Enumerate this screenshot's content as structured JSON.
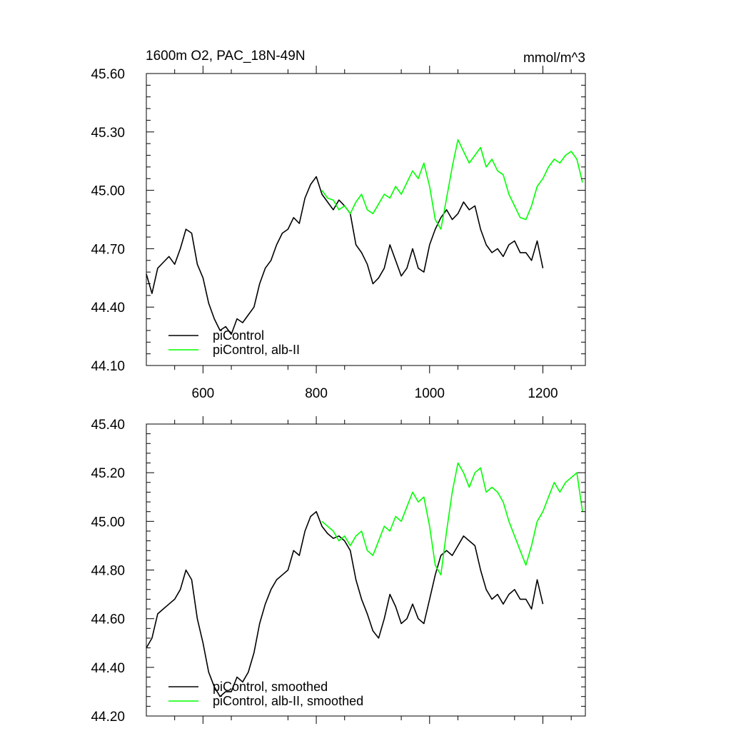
{
  "chart_data": [
    {
      "type": "line",
      "title": "1600m O2, PAC_18N-49N",
      "units": "mmol/m^3",
      "xlim": [
        500,
        1275
      ],
      "ylim": [
        44.1,
        45.6
      ],
      "x_ticks": [
        600,
        800,
        1000,
        1200
      ],
      "x_tick_labels": [
        "600",
        "800",
        "1000",
        "1200"
      ],
      "y_ticks": [
        44.1,
        44.4,
        44.7,
        45.0,
        45.3,
        45.6
      ],
      "y_tick_labels": [
        "44.10",
        "44.40",
        "44.70",
        "45.00",
        "45.30",
        "45.60"
      ],
      "grid": false,
      "legend_position": "bottom-left",
      "series": [
        {
          "name": "piControl",
          "color": "#000000",
          "x": [
            500,
            510,
            520,
            530,
            540,
            550,
            560,
            570,
            580,
            590,
            600,
            610,
            620,
            630,
            640,
            650,
            660,
            670,
            680,
            690,
            700,
            710,
            720,
            730,
            740,
            750,
            760,
            770,
            780,
            790,
            800,
            810,
            820,
            830,
            840,
            850,
            860,
            870,
            880,
            890,
            900,
            910,
            920,
            930,
            940,
            950,
            960,
            970,
            980,
            990,
            1000,
            1010,
            1020,
            1030,
            1040,
            1050,
            1060,
            1070,
            1080,
            1090,
            1100,
            1110,
            1120,
            1130,
            1140,
            1150,
            1160,
            1170,
            1180,
            1190,
            1200
          ],
          "values": [
            44.57,
            44.47,
            44.6,
            44.63,
            44.66,
            44.62,
            44.7,
            44.8,
            44.78,
            44.62,
            44.55,
            44.42,
            44.34,
            44.28,
            44.3,
            44.26,
            44.34,
            44.32,
            44.36,
            44.4,
            44.52,
            44.6,
            44.64,
            44.72,
            44.78,
            44.8,
            44.86,
            44.83,
            44.96,
            45.03,
            45.07,
            44.98,
            44.94,
            44.9,
            44.95,
            44.92,
            44.88,
            44.72,
            44.68,
            44.62,
            44.52,
            44.55,
            44.6,
            44.72,
            44.64,
            44.56,
            44.6,
            44.7,
            44.6,
            44.58,
            44.72,
            44.8,
            44.86,
            44.9,
            44.85,
            44.88,
            44.94,
            44.9,
            44.92,
            44.8,
            44.72,
            44.68,
            44.7,
            44.66,
            44.72,
            44.74,
            44.68,
            44.68,
            44.64,
            44.74,
            44.6
          ]
        },
        {
          "name": "piControl, alb-II",
          "color": "#00ff00",
          "x": [
            810,
            820,
            830,
            840,
            850,
            860,
            870,
            880,
            890,
            900,
            910,
            920,
            930,
            940,
            950,
            960,
            970,
            980,
            990,
            1000,
            1010,
            1020,
            1030,
            1040,
            1050,
            1060,
            1070,
            1080,
            1090,
            1100,
            1110,
            1120,
            1130,
            1140,
            1150,
            1160,
            1170,
            1180,
            1190,
            1200,
            1210,
            1220,
            1230,
            1240,
            1250,
            1260,
            1270
          ],
          "values": [
            45.0,
            44.96,
            44.95,
            44.9,
            44.92,
            44.88,
            44.94,
            44.98,
            44.9,
            44.88,
            44.93,
            44.98,
            44.96,
            45.02,
            44.98,
            45.04,
            45.1,
            45.06,
            45.14,
            45.02,
            44.85,
            44.8,
            44.96,
            45.12,
            45.26,
            45.2,
            45.14,
            45.18,
            45.22,
            45.12,
            45.16,
            45.1,
            45.08,
            44.98,
            44.92,
            44.86,
            44.85,
            44.92,
            45.02,
            45.06,
            45.12,
            45.16,
            45.14,
            45.18,
            45.2,
            45.16,
            45.04
          ]
        }
      ]
    },
    {
      "type": "line",
      "xlim": [
        500,
        1275
      ],
      "ylim": [
        44.2,
        45.4
      ],
      "x_ticks": [
        600,
        800,
        1000,
        1200
      ],
      "y_ticks": [
        44.2,
        44.4,
        44.6,
        44.8,
        45.0,
        45.2,
        45.4
      ],
      "y_tick_labels": [
        "44.20",
        "44.40",
        "44.60",
        "44.80",
        "45.00",
        "45.20",
        "45.40"
      ],
      "grid": false,
      "legend_position": "bottom-left",
      "series": [
        {
          "name": "piControl, smoothed",
          "color": "#000000",
          "x": [
            500,
            510,
            520,
            530,
            540,
            550,
            560,
            570,
            580,
            590,
            600,
            610,
            620,
            630,
            640,
            650,
            660,
            670,
            680,
            690,
            700,
            710,
            720,
            730,
            740,
            750,
            760,
            770,
            780,
            790,
            800,
            810,
            820,
            830,
            840,
            850,
            860,
            870,
            880,
            890,
            900,
            910,
            920,
            930,
            940,
            950,
            960,
            970,
            980,
            990,
            1000,
            1010,
            1020,
            1030,
            1040,
            1050,
            1060,
            1070,
            1080,
            1090,
            1100,
            1110,
            1120,
            1130,
            1140,
            1150,
            1160,
            1170,
            1180,
            1190,
            1200
          ],
          "values": [
            44.48,
            44.52,
            44.62,
            44.64,
            44.66,
            44.68,
            44.72,
            44.8,
            44.76,
            44.6,
            44.5,
            44.38,
            44.32,
            44.28,
            44.3,
            44.3,
            44.36,
            44.34,
            44.38,
            44.46,
            44.58,
            44.66,
            44.72,
            44.76,
            44.78,
            44.8,
            44.88,
            44.86,
            44.96,
            45.02,
            45.04,
            44.98,
            44.95,
            44.93,
            44.94,
            44.92,
            44.88,
            44.76,
            44.68,
            44.62,
            44.55,
            44.52,
            44.6,
            44.7,
            44.65,
            44.58,
            44.6,
            44.66,
            44.6,
            44.58,
            44.68,
            44.78,
            44.86,
            44.88,
            44.86,
            44.9,
            44.94,
            44.92,
            44.9,
            44.8,
            44.72,
            44.68,
            44.7,
            44.66,
            44.7,
            44.72,
            44.68,
            44.68,
            44.64,
            44.76,
            44.66
          ]
        },
        {
          "name": "piControl, alb-II, smoothed",
          "color": "#00ff00",
          "x": [
            810,
            820,
            830,
            840,
            850,
            860,
            870,
            880,
            890,
            900,
            910,
            920,
            930,
            940,
            950,
            960,
            970,
            980,
            990,
            1000,
            1010,
            1020,
            1030,
            1040,
            1050,
            1060,
            1070,
            1080,
            1090,
            1100,
            1110,
            1120,
            1130,
            1140,
            1150,
            1160,
            1170,
            1180,
            1190,
            1200,
            1210,
            1220,
            1230,
            1240,
            1250,
            1260,
            1270
          ],
          "values": [
            45.0,
            44.98,
            44.96,
            44.92,
            44.94,
            44.9,
            44.94,
            44.96,
            44.88,
            44.86,
            44.92,
            44.98,
            44.96,
            45.02,
            45.0,
            45.06,
            45.12,
            45.08,
            45.1,
            44.98,
            44.82,
            44.78,
            44.96,
            45.12,
            45.24,
            45.2,
            45.14,
            45.2,
            45.22,
            45.12,
            45.14,
            45.12,
            45.08,
            45.0,
            44.94,
            44.88,
            44.82,
            44.9,
            45.0,
            45.04,
            45.1,
            45.16,
            45.12,
            45.16,
            45.18,
            45.2,
            45.04
          ]
        }
      ]
    }
  ]
}
